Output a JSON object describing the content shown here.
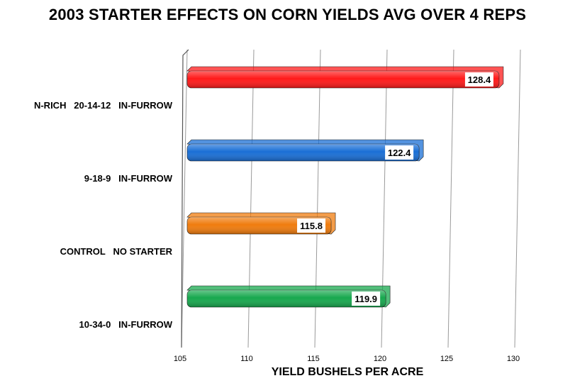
{
  "chart_data": {
    "type": "bar",
    "orientation": "horizontal",
    "title": "2003 STARTER EFFECTS ON CORN YIELDS AVG OVER 4 REPS",
    "xlabel": "YIELD BUSHELS PER ACRE",
    "ylabel": "",
    "categories": [
      "N-RICH   20-14-12   IN-FURROW",
      "9-18-9   IN-FURROW",
      "CONTROL   NO STARTER",
      "10-34-0   IN-FURROW"
    ],
    "values": [
      128.4,
      122.4,
      115.8,
      119.9
    ],
    "value_labels": [
      "128.4",
      "122.4",
      "115.8",
      "119.9"
    ],
    "colors": [
      "#ff1a1a",
      "#1a6fd6",
      "#f07c0e",
      "#17a84e"
    ],
    "xlim": [
      105,
      130
    ],
    "xticks": [
      "105",
      "110",
      "115",
      "120",
      "125",
      "130"
    ],
    "grid": true,
    "legend": "none"
  }
}
